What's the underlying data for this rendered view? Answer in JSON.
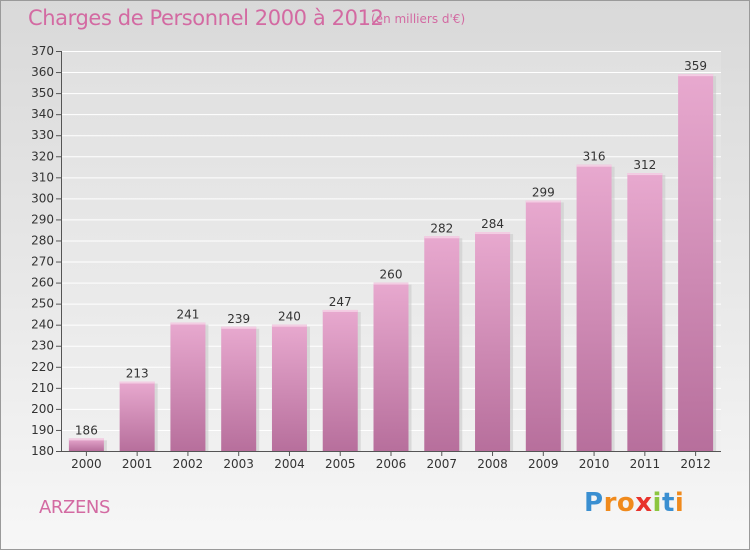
{
  "header": {
    "title": "Charges de Personnel 2000 à 2012",
    "subtitle": "(en milliers d'€)"
  },
  "footer": {
    "location": "ARZENS",
    "brand": "Proxiti",
    "brand_letters": [
      {
        "ch": "P",
        "color": "#3a8fd1"
      },
      {
        "ch": "r",
        "color": "#f08a1c"
      },
      {
        "ch": "o",
        "color": "#f08a1c"
      },
      {
        "ch": "x",
        "color": "#e8332c"
      },
      {
        "ch": "i",
        "color": "#8cc63f"
      },
      {
        "ch": "t",
        "color": "#3a8fd1"
      },
      {
        "ch": "i",
        "color": "#f08a1c"
      }
    ]
  },
  "colors": {
    "accent": "#d36aa2",
    "bar_top": "#e8a9cf",
    "bar_bottom": "#b76f9c"
  },
  "chart_data": {
    "type": "bar",
    "title": "Charges de Personnel 2000 à 2012",
    "subtitle": "(en milliers d'€)",
    "categories": [
      "2000",
      "2001",
      "2002",
      "2003",
      "2004",
      "2005",
      "2006",
      "2007",
      "2008",
      "2009",
      "2010",
      "2011",
      "2012"
    ],
    "values": [
      186,
      213,
      241,
      239,
      240,
      247,
      260,
      282,
      284,
      299,
      316,
      312,
      359
    ],
    "xlabel": "",
    "ylabel": "",
    "ylim": [
      180,
      370
    ],
    "yticks": [
      180,
      190,
      200,
      210,
      220,
      230,
      240,
      250,
      260,
      270,
      280,
      290,
      300,
      310,
      320,
      330,
      340,
      350,
      360,
      370
    ],
    "grid": true
  }
}
